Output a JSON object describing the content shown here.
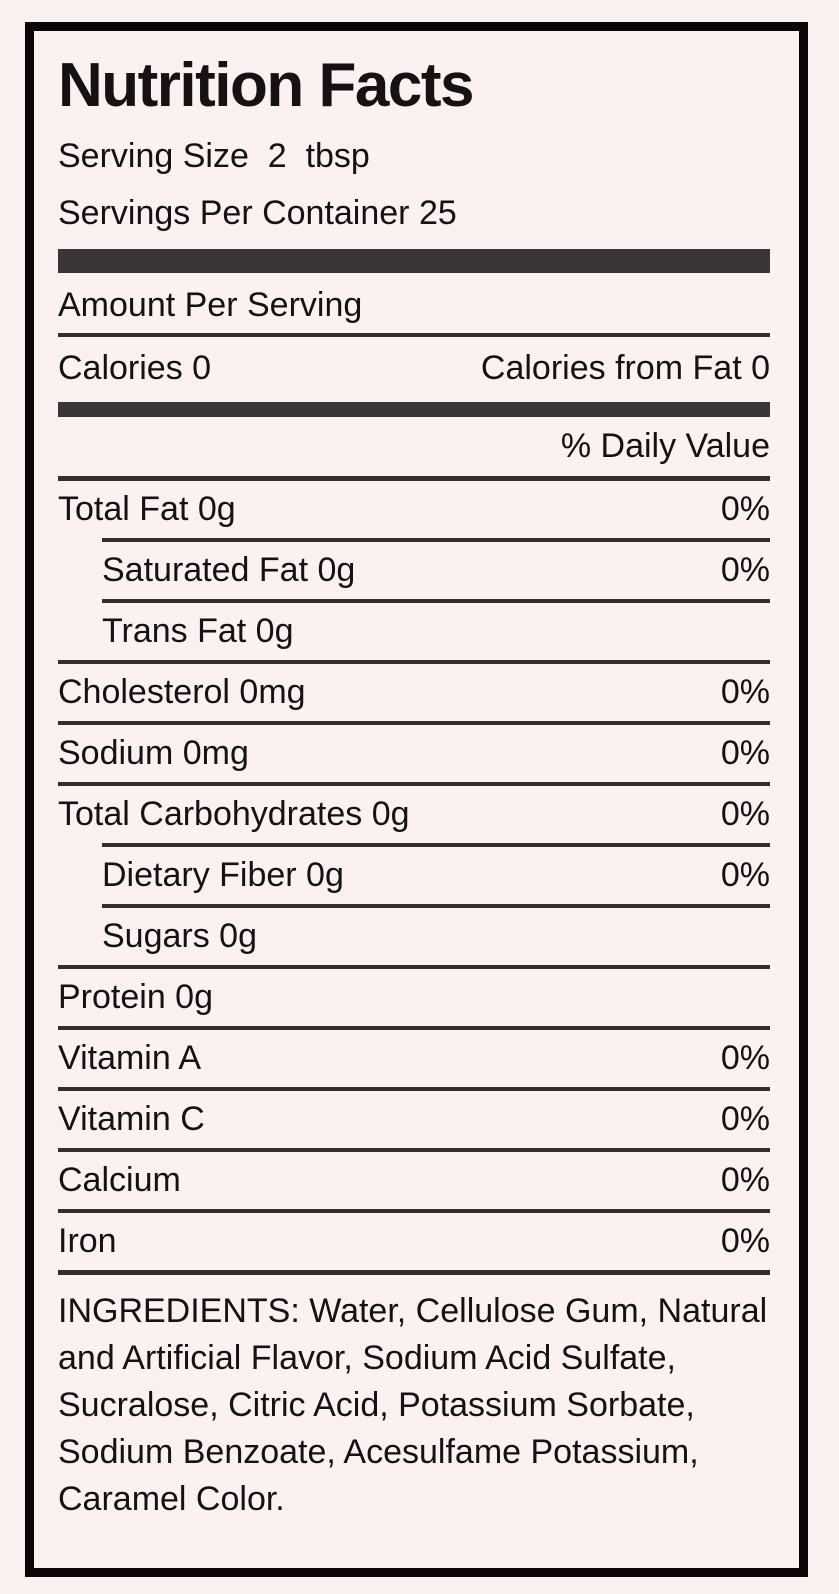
{
  "colors": {
    "background": "#faf1f0",
    "border": "#0b0708",
    "text": "#161112",
    "bar": "#3a3637",
    "rule": "#322e2f"
  },
  "label": {
    "title": "Nutrition Facts",
    "serving_size": "Serving Size  2  tbsp",
    "servings_per_container": "Servings Per Container 25",
    "amount_per_serving": "Amount Per Serving",
    "calories": "Calories 0",
    "calories_from_fat": "Calories from Fat 0",
    "daily_value_header": "% Daily Value",
    "rows": [
      {
        "name": "Total Fat 0g",
        "dv": "0%"
      },
      {
        "name": "Saturated Fat 0g",
        "dv": "0%"
      },
      {
        "name": "Trans Fat 0g",
        "dv": ""
      },
      {
        "name": "Cholesterol 0mg",
        "dv": "0%"
      },
      {
        "name": "Sodium 0mg",
        "dv": "0%"
      },
      {
        "name": "Total Carbohydrates 0g",
        "dv": "0%"
      },
      {
        "name": "Dietary Fiber 0g",
        "dv": "0%"
      },
      {
        "name": "Sugars 0g",
        "dv": ""
      },
      {
        "name": "Protein 0g",
        "dv": ""
      },
      {
        "name": "Vitamin A",
        "dv": "0%"
      },
      {
        "name": "Vitamin C",
        "dv": "0%"
      },
      {
        "name": "Calcium",
        "dv": "0%"
      },
      {
        "name": "Iron",
        "dv": "0%"
      }
    ],
    "ingredients": "INGREDIENTS: Water, Cellulose Gum, Natural and Artificial Flavor, Sodium Acid Sulfate, Sucralose, Citric Acid, Potassium Sorbate, Sodium Benzoate, Acesulfame Potassium, Caramel Color."
  }
}
